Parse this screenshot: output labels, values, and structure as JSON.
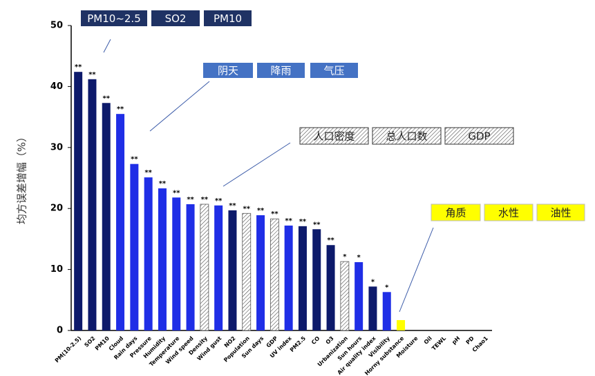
{
  "chart_data": {
    "type": "bar",
    "y_label": "均方误差增幅（%）",
    "categories": [
      "PM(10-2.5)",
      "SO2",
      "PM10",
      "Cloud",
      "Rain days",
      "Pressure",
      "Humidity",
      "Temperature",
      "Wind speed",
      "Density",
      "Wind gust",
      "NO2",
      "Population",
      "Sun days",
      "GDP",
      "UV index",
      "PM2.5",
      "CO",
      "O3",
      "Urbanization",
      "Sun hours",
      "Air quality index",
      "Visibility",
      "Horny substance",
      "Moisture",
      "Oil",
      "TEWL",
      "pH",
      "PD",
      "Chao1"
    ],
    "values": [
      42.4,
      41.2,
      37.3,
      35.5,
      27.3,
      25.1,
      23.3,
      21.8,
      20.7,
      20.7,
      20.5,
      19.7,
      19.2,
      18.9,
      18.3,
      17.2,
      17.1,
      16.6,
      14.0,
      11.3,
      11.2,
      7.2,
      6.3,
      1.7,
      0,
      0,
      0,
      0,
      0,
      0
    ],
    "significance": [
      "**",
      "**",
      "**",
      "**",
      "**",
      "**",
      "**",
      "**",
      "**",
      "**",
      "**",
      "**",
      "**",
      "**",
      "**",
      "**",
      "**",
      "**",
      "**",
      "*",
      "*",
      "*",
      "*",
      null,
      null,
      null,
      null,
      null,
      null,
      null
    ],
    "colors": [
      "#0d1a6b",
      "#0d1a6b",
      "#0d1a6b",
      "#1f2ee6",
      "#1f2ee6",
      "#1f2ee6",
      "#1f2ee6",
      "#1f2ee6",
      "#1f2ee6",
      "hatch",
      "#1f2ee6",
      "#0d1a6b",
      "hatch",
      "#1f2ee6",
      "hatch",
      "#1f2ee6",
      "#0d1a6b",
      "#0d1a6b",
      "#0d1a6b",
      "hatch",
      "#1f2ee6",
      "#0d1a6b",
      "#1f2ee6",
      "#ffff00",
      "#0d1a6b",
      "#0d1a6b",
      "#0d1a6b",
      "#0d1a6b",
      "#0d1a6b",
      "#0d1a6b"
    ],
    "ylim": [
      0,
      50
    ],
    "yticks": [
      0,
      10,
      20,
      30,
      40,
      50
    ],
    "legend": [
      {
        "color": "#1f3264",
        "labels": [
          "PM10~2.5",
          "SO2",
          "PM10"
        ]
      },
      {
        "color": "#4472c4",
        "labels": [
          "阴天",
          "降雨",
          "气压"
        ]
      },
      {
        "color": "hatch",
        "labels": [
          "人口密度",
          "总人口数",
          "GDP"
        ]
      },
      {
        "color": "#ffff00",
        "labels": [
          "角质",
          "水性",
          "油性"
        ]
      }
    ]
  }
}
